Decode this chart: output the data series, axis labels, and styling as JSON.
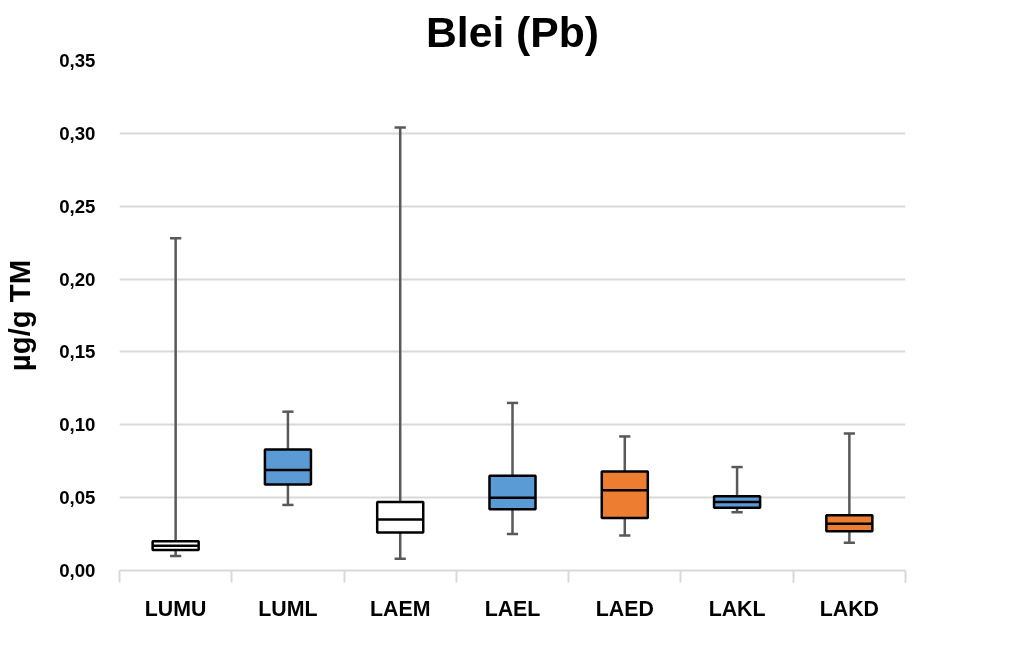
{
  "chart_data": {
    "type": "box",
    "title": "Blei (Pb)",
    "ylabel": "µg/g TM",
    "categories": [
      "LUMU",
      "LUML",
      "LAEM",
      "LAEL",
      "LAED",
      "LAKL",
      "LAKD"
    ],
    "boxes": [
      {
        "low": 0.01,
        "q1": 0.014,
        "median": 0.017,
        "q3": 0.02,
        "high": 0.228
      },
      {
        "low": 0.045,
        "q1": 0.059,
        "median": 0.069,
        "q3": 0.083,
        "high": 0.109
      },
      {
        "low": 0.008,
        "q1": 0.026,
        "median": 0.035,
        "q3": 0.047,
        "high": 0.304
      },
      {
        "low": 0.025,
        "q1": 0.042,
        "median": 0.05,
        "q3": 0.065,
        "high": 0.115
      },
      {
        "low": 0.024,
        "q1": 0.036,
        "median": 0.055,
        "q3": 0.068,
        "high": 0.092
      },
      {
        "low": 0.04,
        "q1": 0.043,
        "median": 0.047,
        "q3": 0.051,
        "high": 0.071
      },
      {
        "low": 0.019,
        "q1": 0.027,
        "median": 0.032,
        "q3": 0.038,
        "high": 0.094
      }
    ],
    "colors": [
      "#ffffff",
      "#5b9bd5",
      "#ffffff",
      "#5b9bd5",
      "#ed7d31",
      "#5b9bd5",
      "#ed7d31"
    ],
    "ylim": [
      0,
      0.35
    ],
    "yticks": [
      {
        "value": 0,
        "label": "0,00"
      },
      {
        "value": 0.05,
        "label": "0,05"
      },
      {
        "value": 0.1,
        "label": "0,10"
      },
      {
        "value": 0.15,
        "label": "0,15"
      },
      {
        "value": 0.2,
        "label": "0,20"
      },
      {
        "value": 0.25,
        "label": "0,25"
      },
      {
        "value": 0.3,
        "label": "0,30"
      },
      {
        "value": 0.35,
        "label": "0,35"
      }
    ],
    "grid": "y"
  }
}
